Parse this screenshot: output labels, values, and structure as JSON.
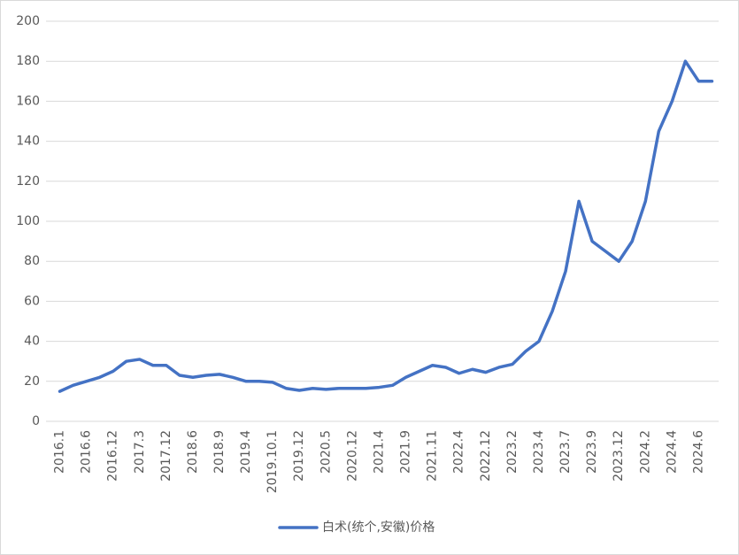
{
  "chart_data": {
    "type": "line",
    "categories": [
      "2016.1",
      null,
      "2016.6",
      null,
      "2016.12",
      null,
      "2017.3",
      null,
      "2017.12",
      null,
      "2018.6",
      null,
      "2018.9",
      null,
      "2019.4",
      null,
      "2019.10.1",
      null,
      "2019.12",
      null,
      "2020.5",
      null,
      "2020.12",
      null,
      "2021.4",
      null,
      "2021.9",
      null,
      "2021.11",
      null,
      "2022.4",
      null,
      "2022.12",
      null,
      "2023.2",
      null,
      "2023.4",
      null,
      "2023.7",
      null,
      "2023.9",
      null,
      "2023.12",
      null,
      "2024.2",
      null,
      "2024.4",
      null,
      "2024.6",
      null
    ],
    "series": [
      {
        "name": "白术(统个,安徽)价格",
        "color": "#4472c4",
        "values": [
          15,
          18,
          20,
          22,
          25,
          30,
          31,
          28,
          28,
          23,
          22,
          23,
          23.5,
          22,
          20,
          20,
          19.5,
          16.5,
          15.5,
          16.5,
          16,
          16.5,
          16.5,
          16.5,
          17,
          18,
          22,
          25,
          28,
          27,
          24,
          26,
          24.5,
          27,
          28.5,
          35,
          40,
          55,
          75,
          110,
          90,
          85,
          80,
          90,
          110,
          145,
          160,
          180,
          170,
          170
        ]
      }
    ],
    "ylim": [
      0,
      200
    ],
    "yticks": [
      0,
      20,
      40,
      60,
      80,
      100,
      120,
      140,
      160,
      180,
      200
    ],
    "grid": true,
    "legend": "bottom"
  }
}
